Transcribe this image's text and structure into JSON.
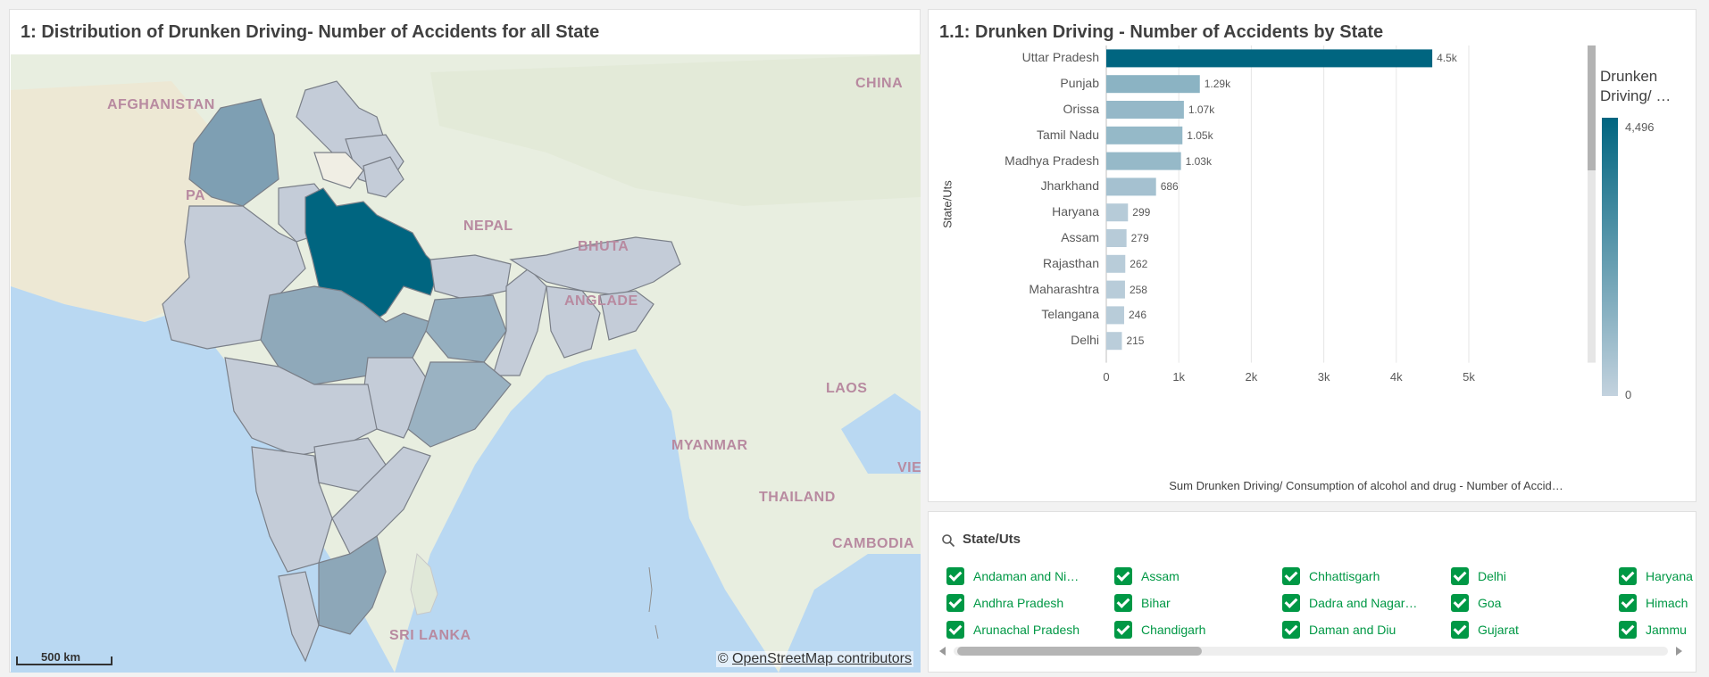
{
  "map_panel": {
    "title": "1: Distribution of Drunken Driving- Number of Accidents for all State",
    "labels": {
      "afghanistan": "AFGHANISTAN",
      "pa": "PA",
      "china": "CHINA",
      "nepal": "NEPAL",
      "bhutan": "BHUTA",
      "bangladesh": "ANGLADE",
      "laos": "LAOS",
      "myanmar": "MYANMAR",
      "thailand": "THAILAND",
      "vietnam": "VIE",
      "cambodia": "CAMBODIA",
      "sri_lanka": "SRI LANKA"
    },
    "scale_text": "500 km",
    "attribution_symbol": "©",
    "attribution": "OpenStreetMap contributors"
  },
  "bar_panel": {
    "title": "1.1: Drunken Driving - Number of Accidents by State",
    "legend_title_line1": "Drunken",
    "legend_title_line2": "Driving/ …",
    "legend_max": "4,496",
    "legend_min": "0"
  },
  "chart_data": {
    "type": "bar",
    "orientation": "horizontal",
    "title": "1.1: Drunken Driving - Number of Accidents by State",
    "ylabel": "State/Uts",
    "xlabel": "Sum Drunken Driving/ Consumption of alcohol and drug - Number of Accid…",
    "categories": [
      "Uttar Pradesh",
      "Punjab",
      "Orissa",
      "Tamil Nadu",
      "Madhya Pradesh",
      "Jharkhand",
      "Haryana",
      "Assam",
      "Rajasthan",
      "Maharashtra",
      "Telangana",
      "Delhi"
    ],
    "values": [
      4496,
      1290,
      1070,
      1050,
      1030,
      686,
      299,
      279,
      262,
      258,
      246,
      215
    ],
    "value_labels": [
      "4.5k",
      "1.29k",
      "1.07k",
      "1.05k",
      "1.03k",
      "686",
      "299",
      "279",
      "262",
      "258",
      "246",
      "215"
    ],
    "xlim": [
      0,
      5000
    ],
    "xticks": [
      0,
      1000,
      2000,
      3000,
      4000,
      5000
    ],
    "xtick_labels": [
      "0",
      "1k",
      "2k",
      "3k",
      "4k",
      "5k"
    ],
    "grid": true,
    "color_scale": {
      "low": "#c3d2de",
      "high": "#006580",
      "min": 0,
      "max": 4496
    }
  },
  "filter_panel": {
    "title": "State/Uts",
    "columns": [
      [
        "Andaman and Ni…",
        "Andhra Pradesh",
        "Arunachal Pradesh"
      ],
      [
        "Assam",
        "Bihar",
        "Chandigarh"
      ],
      [
        "Chhattisgarh",
        "Dadra and Nagar…",
        "Daman and Diu"
      ],
      [
        "Delhi",
        "Goa",
        "Gujarat"
      ],
      [
        "Haryana",
        "Himach",
        "Jammu"
      ]
    ]
  },
  "colors": {
    "accent_dark": "#006580",
    "check_green": "#009845",
    "region_default": "#c4ccd8"
  }
}
